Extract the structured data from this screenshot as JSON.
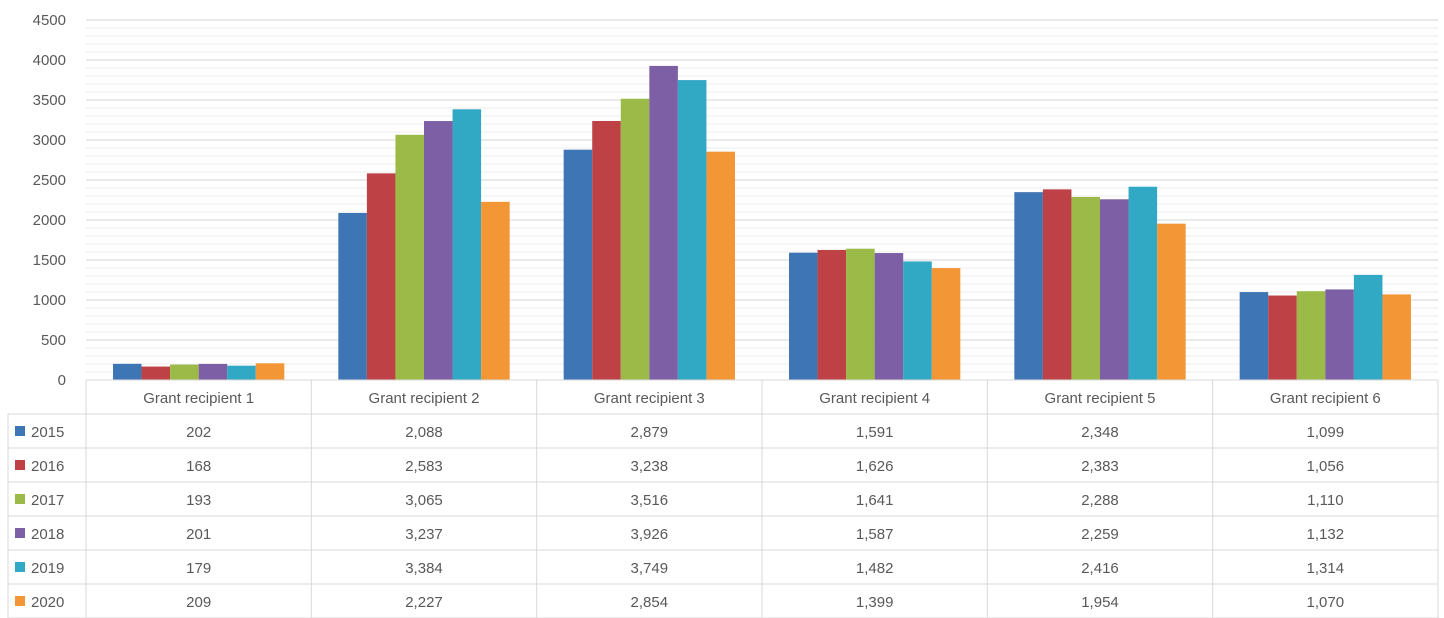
{
  "chart_data": {
    "type": "bar",
    "title": "",
    "xlabel": "",
    "ylabel": "",
    "ylim": [
      0,
      4500
    ],
    "yticks": [
      0,
      500,
      1000,
      1500,
      2000,
      2500,
      3000,
      3500,
      4000,
      4500
    ],
    "grid": true,
    "minor_grid": true,
    "legend": "data-table",
    "categories": [
      "Grant recipient 1",
      "Grant recipient 2",
      "Grant recipient 3",
      "Grant recipient 4",
      "Grant recipient 5",
      "Grant recipient 6"
    ],
    "series": [
      {
        "name": "2015",
        "color": "#3E75B5",
        "values": [
          202,
          2088,
          2879,
          1591,
          2348,
          1099
        ],
        "labels": [
          "202",
          "2,088",
          "2,879",
          "1,591",
          "2,348",
          "1,099"
        ]
      },
      {
        "name": "2016",
        "color": "#BE4245",
        "values": [
          168,
          2583,
          3238,
          1626,
          2383,
          1056
        ],
        "labels": [
          "168",
          "2,583",
          "3,238",
          "1,626",
          "2,383",
          "1,056"
        ]
      },
      {
        "name": "2017",
        "color": "#9BBA48",
        "values": [
          193,
          3065,
          3516,
          1641,
          2288,
          1110
        ],
        "labels": [
          "193",
          "3,065",
          "3,516",
          "1,641",
          "2,288",
          "1,110"
        ]
      },
      {
        "name": "2018",
        "color": "#7D5FA5",
        "values": [
          201,
          3237,
          3926,
          1587,
          2259,
          1132
        ],
        "labels": [
          "201",
          "3,237",
          "3,926",
          "1,587",
          "2,259",
          "1,132"
        ]
      },
      {
        "name": "2019",
        "color": "#31A8C4",
        "values": [
          179,
          3384,
          3749,
          1482,
          2416,
          1314
        ],
        "labels": [
          "179",
          "3,384",
          "3,749",
          "1,482",
          "2,416",
          "1,314"
        ]
      },
      {
        "name": "2020",
        "color": "#F39636",
        "values": [
          209,
          2227,
          2854,
          1399,
          1954,
          1070
        ],
        "labels": [
          "209",
          "2,227",
          "2,854",
          "1,399",
          "1,954",
          "1,070"
        ]
      }
    ]
  }
}
